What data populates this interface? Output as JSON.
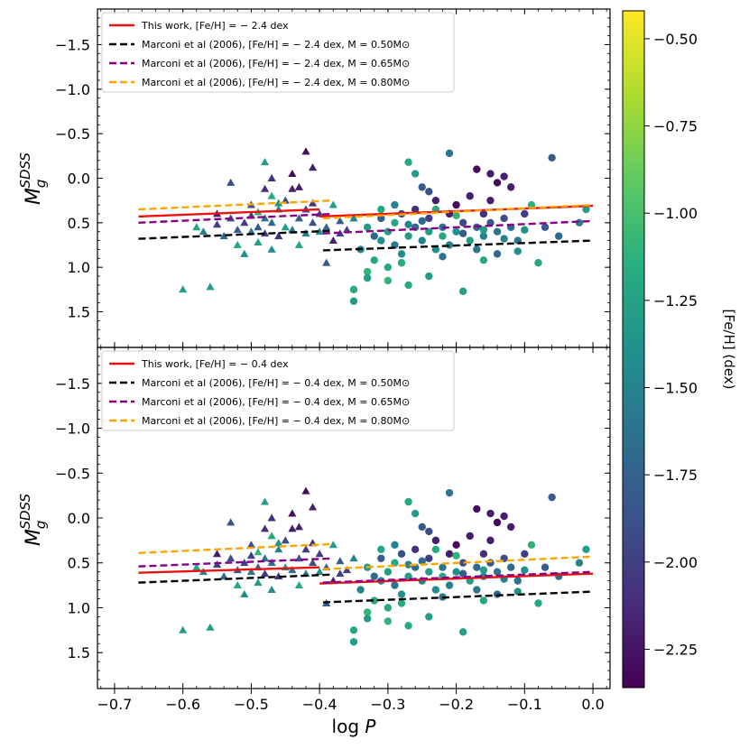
{
  "chart_data": {
    "type": "scatter",
    "shared_x_axis": {
      "label_main": "log",
      "label_italic": "P",
      "range": [
        -0.725,
        0.025
      ],
      "ticks": [
        -0.7,
        -0.6,
        -0.5,
        -0.4,
        -0.3,
        -0.2,
        -0.1,
        0.0
      ],
      "tick_labels": [
        "−0.7",
        "−0.6",
        "−0.5",
        "−0.4",
        "−0.3",
        "−0.2",
        "−0.1",
        "0.0"
      ]
    },
    "y_axis": {
      "label_main": "M",
      "label_sub": "g",
      "label_sup": "SDSS",
      "range_top": -1.9,
      "range_bottom": 1.9,
      "inverted": true,
      "ticks": [
        -1.5,
        -1.0,
        -0.5,
        0.0,
        0.5,
        1.0,
        1.5
      ],
      "tick_labels": [
        "−1.5",
        "−1.0",
        "−0.5",
        "0.0",
        "0.5",
        "1.0",
        "1.5"
      ]
    },
    "colorbar": {
      "label": "[Fe/H] (dex)",
      "range": [
        -2.36,
        -0.42
      ],
      "ticks": [
        -0.5,
        -0.75,
        -1.0,
        -1.25,
        -1.5,
        -1.75,
        -2.0,
        -2.25
      ],
      "tick_labels": [
        "−0.50",
        "−0.75",
        "−1.00",
        "−1.25",
        "−1.50",
        "−1.75",
        "−2.00",
        "−2.25"
      ],
      "colormap": "viridis"
    },
    "colors": {
      "this_work": "#ee1111",
      "m050": "#000000",
      "m065": "#880088",
      "m080": "#ffa500"
    },
    "scatter_points": {
      "triangles": [
        [
          -0.6,
          1.25,
          -1.3
        ],
        [
          -0.58,
          0.55,
          -1.2
        ],
        [
          -0.57,
          0.6,
          -1.5
        ],
        [
          -0.56,
          1.22,
          -1.3
        ],
        [
          -0.55,
          0.52,
          -2.0
        ],
        [
          -0.54,
          0.65,
          -1.7
        ],
        [
          -0.53,
          0.45,
          -1.9
        ],
        [
          -0.52,
          0.75,
          -1.2
        ],
        [
          -0.52,
          0.58,
          -1.8
        ],
        [
          -0.51,
          0.85,
          -1.4
        ],
        [
          -0.51,
          0.5,
          -2.0
        ],
        [
          -0.5,
          0.6,
          -1.6
        ],
        [
          -0.5,
          0.3,
          -1.9
        ],
        [
          -0.49,
          0.38,
          -1.1
        ],
        [
          -0.49,
          0.72,
          -1.3
        ],
        [
          -0.49,
          0.55,
          -1.8
        ],
        [
          -0.48,
          0.45,
          -1.6
        ],
        [
          -0.48,
          0.62,
          -2.0
        ],
        [
          -0.47,
          0.2,
          -1.2
        ],
        [
          -0.47,
          0.8,
          -1.4
        ],
        [
          -0.47,
          0.5,
          -1.7
        ],
        [
          -0.46,
          0.35,
          -1.5
        ],
        [
          -0.46,
          0.65,
          -2.1
        ],
        [
          -0.45,
          0.55,
          -1.3
        ],
        [
          -0.45,
          0.25,
          -1.9
        ],
        [
          -0.44,
          0.12,
          -2.2
        ],
        [
          -0.44,
          0.58,
          -1.6
        ],
        [
          -0.43,
          0.45,
          -1.8
        ],
        [
          -0.43,
          0.75,
          -1.2
        ],
        [
          -0.42,
          0.35,
          -2.0
        ],
        [
          -0.42,
          0.62,
          -1.5
        ],
        [
          -0.41,
          0.5,
          -1.9
        ],
        [
          -0.41,
          0.28,
          -2.1
        ],
        [
          -0.4,
          0.6,
          -1.4
        ],
        [
          -0.4,
          0.4,
          -2.0
        ],
        [
          -0.39,
          0.55,
          -1.7
        ],
        [
          -0.38,
          0.7,
          -2.2
        ],
        [
          -0.38,
          0.3,
          -1.3
        ],
        [
          -0.37,
          0.48,
          -1.8
        ],
        [
          -0.37,
          0.62,
          -2.0
        ],
        [
          -0.42,
          -0.3,
          -2.3
        ],
        [
          -0.44,
          -0.05,
          -2.3
        ],
        [
          -0.48,
          -0.18,
          -1.3
        ],
        [
          -0.47,
          0.0,
          -2.1
        ],
        [
          -0.41,
          -0.12,
          -2.2
        ],
        [
          -0.53,
          0.05,
          -1.9
        ],
        [
          -0.55,
          0.4,
          -2.2
        ],
        [
          -0.35,
          0.45,
          -1.5
        ],
        [
          -0.36,
          0.58,
          -2.0
        ],
        [
          -0.39,
          0.95,
          -1.8
        ],
        [
          -0.48,
          0.12,
          -2.1
        ],
        [
          -0.46,
          0.28,
          -1.4
        ],
        [
          -0.5,
          0.42,
          -2.0
        ],
        [
          -0.43,
          0.1,
          -2.2
        ]
      ],
      "circles": [
        [
          -0.35,
          1.25,
          -1.2
        ],
        [
          -0.35,
          1.38,
          -1.3
        ],
        [
          -0.34,
          0.8,
          -1.5
        ],
        [
          -0.33,
          0.55,
          -1.3
        ],
        [
          -0.33,
          1.05,
          -1.1
        ],
        [
          -0.32,
          0.65,
          -1.7
        ],
        [
          -0.32,
          0.92,
          -1.2
        ],
        [
          -0.31,
          0.7,
          -1.4
        ],
        [
          -0.31,
          0.45,
          -1.8
        ],
        [
          -0.3,
          0.6,
          -1.3
        ],
        [
          -0.3,
          1.15,
          -1.1
        ],
        [
          -0.29,
          0.75,
          -1.6
        ],
        [
          -0.29,
          0.5,
          -1.2
        ],
        [
          -0.28,
          0.85,
          -1.4
        ],
        [
          -0.28,
          0.4,
          -1.9
        ],
        [
          -0.27,
          0.65,
          -1.3
        ],
        [
          -0.27,
          1.2,
          -1.2
        ],
        [
          -0.26,
          0.55,
          -1.7
        ],
        [
          -0.26,
          0.35,
          -2.1
        ],
        [
          -0.25,
          0.7,
          -1.5
        ],
        [
          -0.25,
          0.1,
          -1.8
        ],
        [
          -0.24,
          0.6,
          -1.3
        ],
        [
          -0.24,
          0.45,
          -2.0
        ],
        [
          -0.23,
          0.8,
          -1.4
        ],
        [
          -0.23,
          0.25,
          -2.2
        ],
        [
          -0.22,
          0.55,
          -1.6
        ],
        [
          -0.22,
          0.65,
          -1.2
        ],
        [
          -0.21,
          0.4,
          -2.2
        ],
        [
          -0.21,
          0.75,
          -1.5
        ],
        [
          -0.2,
          0.3,
          -2.3
        ],
        [
          -0.2,
          0.6,
          -1.4
        ],
        [
          -0.19,
          1.27,
          -1.3
        ],
        [
          -0.19,
          0.5,
          -1.9
        ],
        [
          -0.18,
          0.7,
          -1.3
        ],
        [
          -0.18,
          0.2,
          -2.2
        ],
        [
          -0.17,
          0.55,
          -1.7
        ],
        [
          -0.17,
          0.8,
          -1.6
        ],
        [
          -0.16,
          0.4,
          -2.1
        ],
        [
          -0.16,
          0.65,
          -1.5
        ],
        [
          -0.15,
          0.5,
          -1.8
        ],
        [
          -0.15,
          0.25,
          -2.2
        ],
        [
          -0.14,
          0.6,
          -1.6
        ],
        [
          -0.14,
          0.85,
          -1.7
        ],
        [
          -0.13,
          0.45,
          -1.9
        ],
        [
          -0.12,
          0.55,
          -1.7
        ],
        [
          -0.11,
          0.7,
          -1.6
        ],
        [
          -0.1,
          0.4,
          -2.0
        ],
        [
          -0.1,
          0.58,
          -1.4
        ],
        [
          -0.09,
          0.3,
          -1.1
        ],
        [
          -0.08,
          0.95,
          -1.2
        ],
        [
          -0.07,
          0.55,
          -1.8
        ],
        [
          -0.06,
          -0.23,
          -1.8
        ],
        [
          -0.05,
          0.65,
          -1.7
        ],
        [
          -0.02,
          0.5,
          -1.5
        ],
        [
          -0.01,
          0.35,
          -1.3
        ],
        [
          -0.26,
          -0.05,
          -1.3
        ],
        [
          -0.21,
          -0.28,
          -1.6
        ],
        [
          -0.27,
          -0.18,
          -1.2
        ],
        [
          -0.17,
          -0.1,
          -2.3
        ],
        [
          -0.15,
          -0.05,
          -2.2
        ],
        [
          -0.14,
          0.05,
          -2.3
        ],
        [
          -0.13,
          -0.02,
          -2.2
        ],
        [
          -0.12,
          0.1,
          -2.2
        ],
        [
          -0.24,
          0.15,
          -1.9
        ],
        [
          -0.29,
          0.3,
          -1.5
        ],
        [
          -0.31,
          0.35,
          -1.2
        ],
        [
          -0.23,
          0.35,
          -1.2
        ],
        [
          -0.2,
          0.42,
          -1.1
        ],
        [
          -0.28,
          0.95,
          -1.2
        ],
        [
          -0.33,
          1.12,
          -1.3
        ],
        [
          -0.3,
          1.0,
          -1.2
        ],
        [
          -0.24,
          1.1,
          -1.3
        ],
        [
          -0.22,
          0.88,
          -1.6
        ],
        [
          -0.16,
          0.92,
          -1.2
        ],
        [
          -0.11,
          0.82,
          -1.4
        ],
        [
          -0.27,
          0.52,
          -1.5
        ],
        [
          -0.25,
          0.48,
          -1.7
        ],
        [
          -0.19,
          0.62,
          -1.8
        ],
        [
          -0.16,
          0.58,
          -1.3
        ],
        [
          -0.13,
          0.68,
          -1.5
        ]
      ]
    },
    "panels": [
      {
        "legend": [
          {
            "key": "this_work",
            "style": "solid",
            "text": "This work, [Fe/H] = − 2.4 dex"
          },
          {
            "key": "m050",
            "style": "dashed",
            "text": "Marconi et al (2006), [Fe/H] = − 2.4 dex, M = 0.50M⊙"
          },
          {
            "key": "m065",
            "style": "dashed",
            "text": "Marconi et al (2006), [Fe/H] = − 2.4 dex, M = 0.65M⊙"
          },
          {
            "key": "m080",
            "style": "dashed",
            "text": "Marconi et al (2006), [Fe/H] = − 2.4 dex, M = 0.80M⊙"
          }
        ],
        "lines": [
          {
            "key": "this_work",
            "segments": [
              [
                -0.665,
                0.43,
                -0.4,
                0.35
              ],
              [
                -0.4,
                0.43,
                0.0,
                0.31
              ]
            ]
          },
          {
            "key": "m050",
            "segments": [
              [
                -0.665,
                0.68,
                -0.38,
                0.59
              ],
              [
                -0.395,
                0.81,
                0.0,
                0.7
              ]
            ]
          },
          {
            "key": "m065",
            "segments": [
              [
                -0.665,
                0.5,
                -0.38,
                0.4
              ],
              [
                -0.395,
                0.62,
                0.0,
                0.48
              ]
            ]
          },
          {
            "key": "m080",
            "segments": [
              [
                -0.665,
                0.35,
                -0.38,
                0.25
              ],
              [
                -0.395,
                0.45,
                0.0,
                0.3
              ]
            ]
          }
        ]
      },
      {
        "legend": [
          {
            "key": "this_work",
            "style": "solid",
            "text": "This work, [Fe/H] = − 0.4 dex"
          },
          {
            "key": "m050",
            "style": "dashed",
            "text": "Marconi et al (2006), [Fe/H] = − 0.4 dex, M = 0.50M⊙"
          },
          {
            "key": "m065",
            "style": "dashed",
            "text": "Marconi et al (2006), [Fe/H] = − 0.4 dex, M = 0.65M⊙"
          },
          {
            "key": "m080",
            "style": "dashed",
            "text": "Marconi et al (2006), [Fe/H] = − 0.4 dex, M = 0.80M⊙"
          }
        ],
        "lines": [
          {
            "key": "this_work",
            "segments": [
              [
                -0.665,
                0.61,
                -0.4,
                0.55
              ],
              [
                -0.4,
                0.73,
                0.0,
                0.62
              ]
            ]
          },
          {
            "key": "m050",
            "segments": [
              [
                -0.665,
                0.72,
                -0.38,
                0.63
              ],
              [
                -0.395,
                0.94,
                0.0,
                0.82
              ]
            ]
          },
          {
            "key": "m065",
            "segments": [
              [
                -0.665,
                0.54,
                -0.38,
                0.45
              ],
              [
                -0.395,
                0.72,
                0.0,
                0.6
              ]
            ]
          },
          {
            "key": "m080",
            "segments": [
              [
                -0.665,
                0.39,
                -0.38,
                0.29
              ],
              [
                -0.395,
                0.57,
                0.0,
                0.43
              ]
            ]
          }
        ]
      }
    ]
  }
}
